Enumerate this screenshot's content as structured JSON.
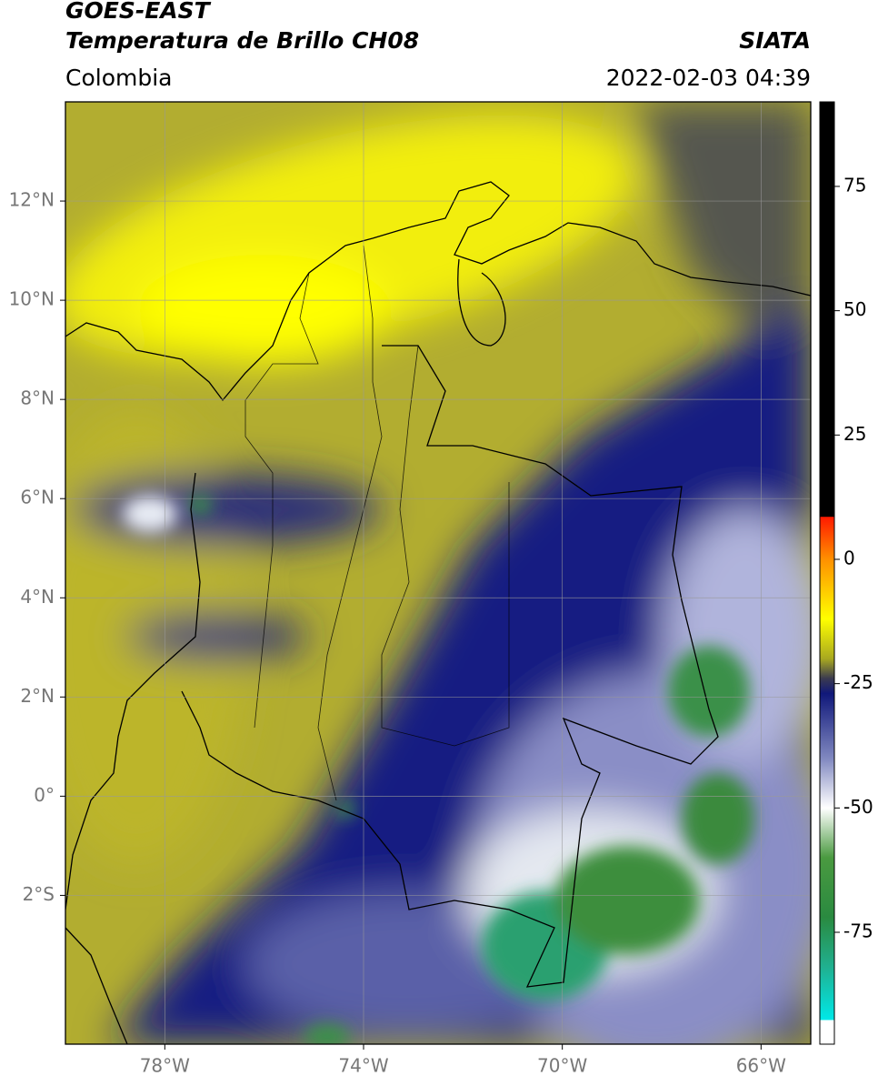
{
  "header": {
    "satellite": "GOES-EAST",
    "product": "Temperatura de Brillo CH08",
    "source": "SIATA",
    "region": "Colombia",
    "datetime": "2022-02-03 04:39"
  },
  "map": {
    "xlim": [
      -80,
      -65
    ],
    "ylim": [
      -5,
      14
    ],
    "xticks": [
      {
        "value": -78,
        "label": "78°W"
      },
      {
        "value": -74,
        "label": "74°W"
      },
      {
        "value": -70,
        "label": "70°W"
      },
      {
        "value": -66,
        "label": "66°W"
      }
    ],
    "yticks": [
      {
        "value": 12,
        "label": "12°N"
      },
      {
        "value": 10,
        "label": "10°N"
      },
      {
        "value": 8,
        "label": "8°N"
      },
      {
        "value": 6,
        "label": "6°N"
      },
      {
        "value": 4,
        "label": "4°N"
      },
      {
        "value": 2,
        "label": "2°N"
      },
      {
        "value": 0,
        "label": "0°"
      },
      {
        "value": -2,
        "label": "2°S"
      }
    ],
    "grid": true
  },
  "colorbar": {
    "lim": [
      -97.5,
      92
    ],
    "ticks": [
      75,
      50,
      25,
      0,
      -25,
      -50,
      -75
    ],
    "colormap": [
      {
        "value": 92,
        "color": "#000000"
      },
      {
        "value": 8.6,
        "color": "#000000"
      },
      {
        "value": 8.5,
        "color": "#ff1a00"
      },
      {
        "value": 0,
        "color": "#ff9000"
      },
      {
        "value": -12,
        "color": "#ffff00"
      },
      {
        "value": -20,
        "color": "#a8a820"
      },
      {
        "value": -24,
        "color": "#3a3a50"
      },
      {
        "value": -27,
        "color": "#10187a"
      },
      {
        "value": -40,
        "color": "#8088c0"
      },
      {
        "value": -50,
        "color": "#ffffff"
      },
      {
        "value": -60,
        "color": "#4a9a40"
      },
      {
        "value": -72,
        "color": "#2a8a40"
      },
      {
        "value": -82,
        "color": "#20b090"
      },
      {
        "value": -92.6,
        "color": "#00e8e8"
      },
      {
        "value": -92.7,
        "color": "#ffffff"
      },
      {
        "value": -97.5,
        "color": "#ffffff"
      }
    ]
  }
}
